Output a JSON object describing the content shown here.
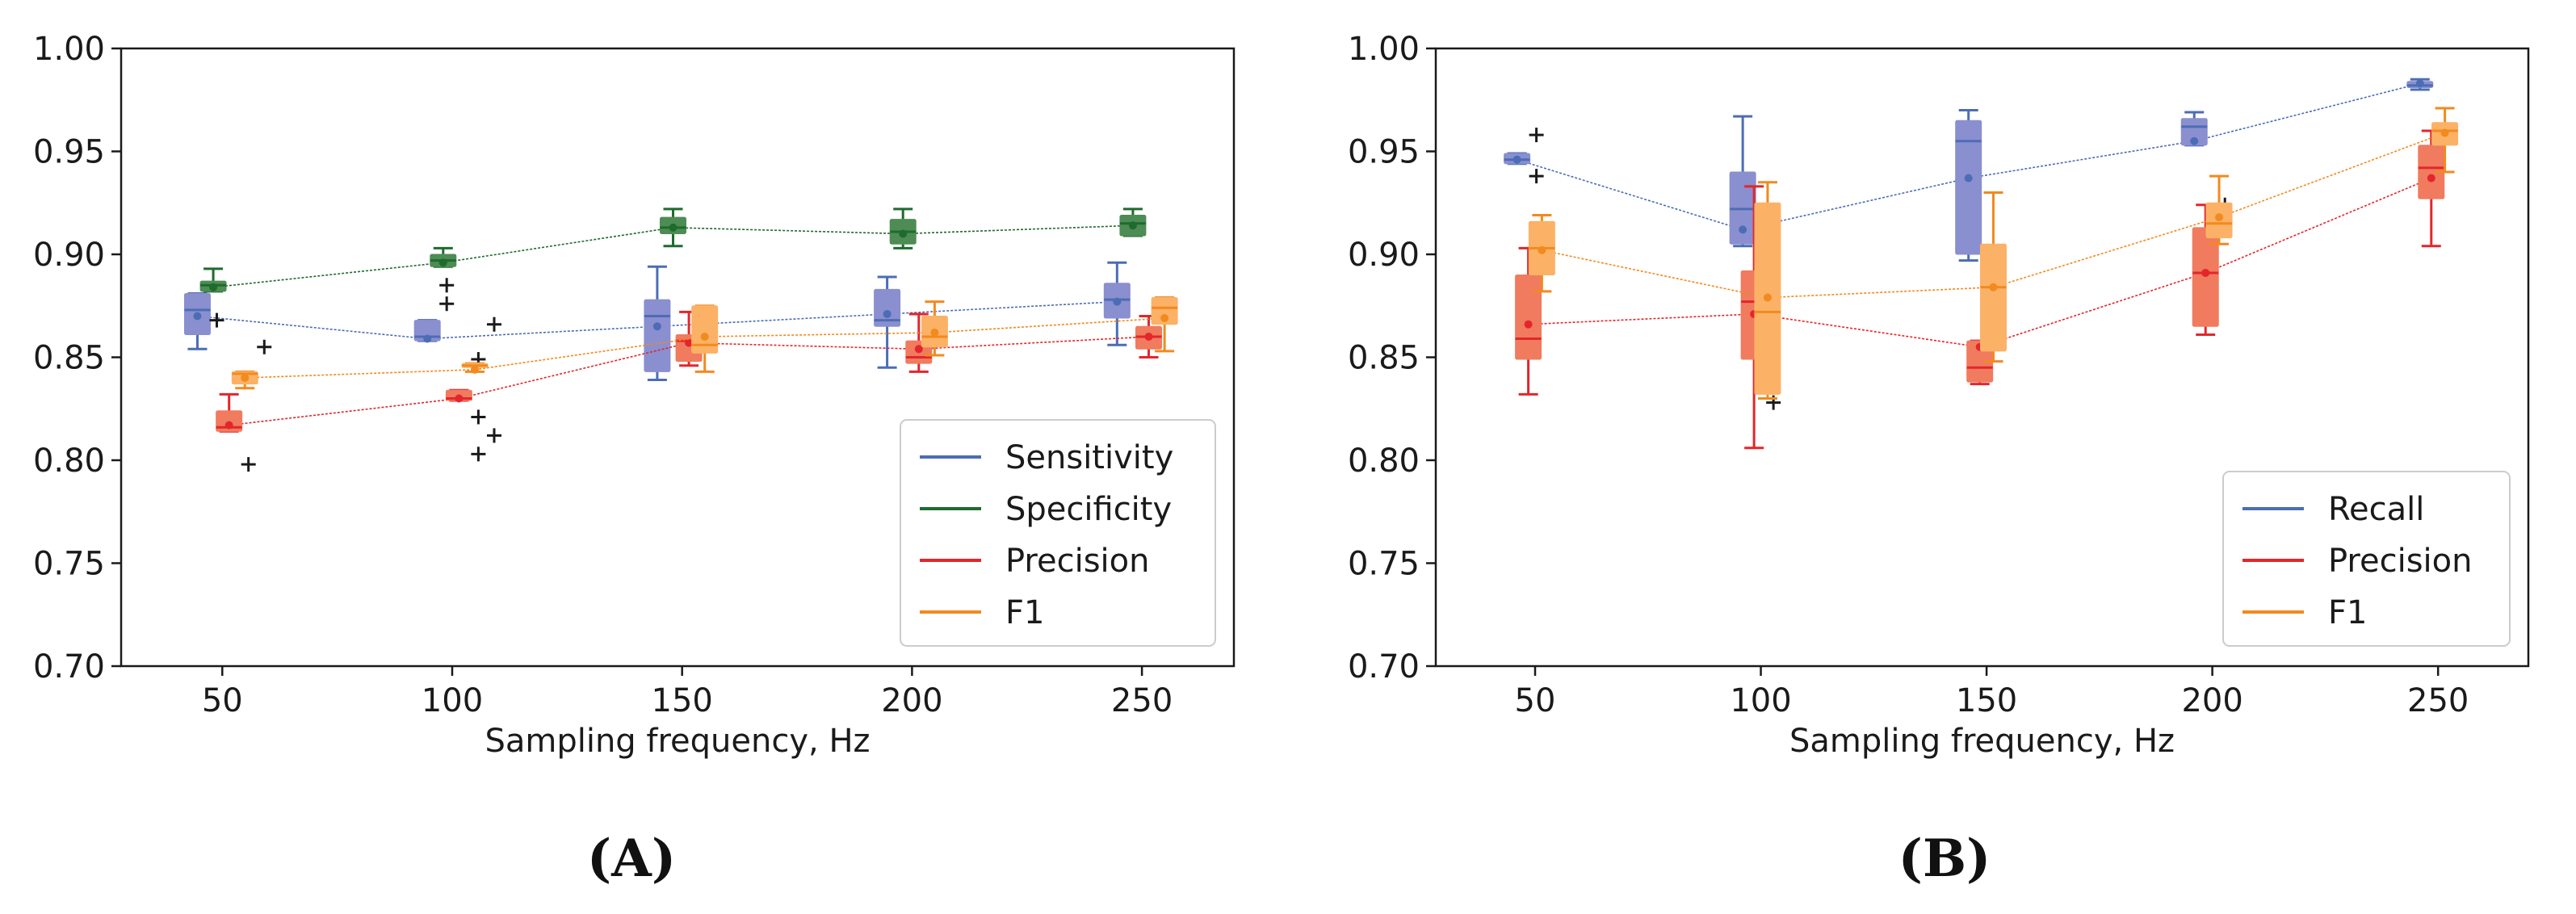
{
  "figure": {
    "panel_labels": [
      "(A)",
      "(B)"
    ]
  },
  "chart_data": [
    {
      "type": "box",
      "panel": "(A)",
      "title": "",
      "xlabel": "Sampling frequency, Hz",
      "ylabel": "",
      "xlim": [
        28,
        270
      ],
      "ylim": [
        0.7,
        1.0
      ],
      "x_ticks": [
        50,
        100,
        150,
        200,
        250
      ],
      "x_tick_labels": [
        "50",
        "100",
        "150",
        "200",
        "250"
      ],
      "y_ticks": [
        0.7,
        0.75,
        0.8,
        0.85,
        0.9,
        0.95,
        1.0
      ],
      "y_tick_labels": [
        "0.70",
        "0.75",
        "0.80",
        "0.85",
        "0.90",
        "0.95",
        "1.00"
      ],
      "grid": false,
      "legend_position": "bottom-right",
      "series": [
        {
          "name": "Sensitivity",
          "color": "#4c6db5",
          "box_color": "#8a8fcf",
          "offset": -11,
          "boxes": [
            {
              "x": 50,
              "whislo": 0.854,
              "q1": 0.861,
              "med": 0.873,
              "q3": 0.881,
              "whishi": 0.881,
              "mean": 0.87,
              "fliers": [
                0.868
              ]
            },
            {
              "x": 100,
              "whislo": 0.858,
              "q1": 0.858,
              "med": 0.86,
              "q3": 0.868,
              "whishi": 0.868,
              "mean": 0.859,
              "fliers": [
                0.885,
                0.876
              ]
            },
            {
              "x": 150,
              "whislo": 0.839,
              "q1": 0.843,
              "med": 0.87,
              "q3": 0.878,
              "whishi": 0.894,
              "mean": 0.865,
              "fliers": []
            },
            {
              "x": 200,
              "whislo": 0.845,
              "q1": 0.865,
              "med": 0.868,
              "q3": 0.883,
              "whishi": 0.889,
              "mean": 0.871,
              "fliers": []
            },
            {
              "x": 250,
              "whislo": 0.856,
              "q1": 0.869,
              "med": 0.878,
              "q3": 0.886,
              "whishi": 0.896,
              "mean": 0.877,
              "fliers": []
            }
          ]
        },
        {
          "name": "Specificity",
          "color": "#1e6b2e",
          "box_color": "#4e8c55",
          "offset": -4,
          "boxes": [
            {
              "x": 50,
              "whislo": 0.882,
              "q1": 0.882,
              "med": 0.885,
              "q3": 0.887,
              "whishi": 0.893,
              "mean": 0.884,
              "fliers": []
            },
            {
              "x": 100,
              "whislo": 0.894,
              "q1": 0.894,
              "med": 0.897,
              "q3": 0.9,
              "whishi": 0.903,
              "mean": 0.896,
              "fliers": []
            },
            {
              "x": 150,
              "whislo": 0.904,
              "q1": 0.91,
              "med": 0.913,
              "q3": 0.918,
              "whishi": 0.922,
              "mean": 0.913,
              "fliers": []
            },
            {
              "x": 200,
              "whislo": 0.903,
              "q1": 0.905,
              "med": 0.911,
              "q3": 0.917,
              "whishi": 0.922,
              "mean": 0.91,
              "fliers": []
            },
            {
              "x": 250,
              "whislo": 0.909,
              "q1": 0.909,
              "med": 0.915,
              "q3": 0.919,
              "whishi": 0.922,
              "mean": 0.914,
              "fliers": []
            }
          ]
        },
        {
          "name": "Precision",
          "color": "#e3262b",
          "box_color": "#f07b5e",
          "offset": 3,
          "boxes": [
            {
              "x": 50,
              "whislo": 0.814,
              "q1": 0.814,
              "med": 0.816,
              "q3": 0.824,
              "whishi": 0.832,
              "mean": 0.817,
              "fliers": [
                0.798
              ]
            },
            {
              "x": 100,
              "whislo": 0.829,
              "q1": 0.829,
              "med": 0.83,
              "q3": 0.834,
              "whishi": 0.834,
              "mean": 0.83,
              "fliers": [
                0.821,
                0.849,
                0.803
              ]
            },
            {
              "x": 150,
              "whislo": 0.846,
              "q1": 0.848,
              "med": 0.858,
              "q3": 0.861,
              "whishi": 0.872,
              "mean": 0.857,
              "fliers": []
            },
            {
              "x": 200,
              "whislo": 0.843,
              "q1": 0.847,
              "med": 0.85,
              "q3": 0.858,
              "whishi": 0.871,
              "mean": 0.854,
              "fliers": []
            },
            {
              "x": 250,
              "whislo": 0.85,
              "q1": 0.854,
              "med": 0.86,
              "q3": 0.865,
              "whishi": 0.87,
              "mean": 0.86,
              "fliers": []
            }
          ]
        },
        {
          "name": "F1",
          "color": "#f28a1e",
          "box_color": "#fbb267",
          "offset": 10,
          "boxes": [
            {
              "x": 50,
              "whislo": 0.835,
              "q1": 0.837,
              "med": 0.842,
              "q3": 0.843,
              "whishi": 0.843,
              "mean": 0.84,
              "fliers": [
                0.855
              ]
            },
            {
              "x": 100,
              "whislo": 0.843,
              "q1": 0.845,
              "med": 0.846,
              "q3": 0.847,
              "whishi": 0.847,
              "mean": 0.844,
              "fliers": [
                0.812,
                0.866
              ]
            },
            {
              "x": 150,
              "whislo": 0.843,
              "q1": 0.852,
              "med": 0.856,
              "q3": 0.875,
              "whishi": 0.875,
              "mean": 0.86,
              "fliers": []
            },
            {
              "x": 200,
              "whislo": 0.851,
              "q1": 0.855,
              "med": 0.86,
              "q3": 0.87,
              "whishi": 0.877,
              "mean": 0.862,
              "fliers": []
            },
            {
              "x": 250,
              "whislo": 0.853,
              "q1": 0.866,
              "med": 0.874,
              "q3": 0.879,
              "whishi": 0.879,
              "mean": 0.869,
              "fliers": []
            }
          ]
        }
      ]
    },
    {
      "type": "box",
      "panel": "(B)",
      "title": "",
      "xlabel": "Sampling frequency, Hz",
      "ylabel": "",
      "xlim": [
        28,
        270
      ],
      "ylim": [
        0.7,
        1.0
      ],
      "x_ticks": [
        50,
        100,
        150,
        200,
        250
      ],
      "x_tick_labels": [
        "50",
        "100",
        "150",
        "200",
        "250"
      ],
      "y_ticks": [
        0.7,
        0.75,
        0.8,
        0.85,
        0.9,
        0.95,
        1.0
      ],
      "y_tick_labels": [
        "0.70",
        "0.75",
        "0.80",
        "0.85",
        "0.90",
        "0.95",
        "1.00"
      ],
      "grid": false,
      "legend_position": "bottom-right",
      "series": [
        {
          "name": "Recall",
          "color": "#4c6db5",
          "box_color": "#8a8fcf",
          "offset": -8,
          "boxes": [
            {
              "x": 50,
              "whislo": 0.944,
              "q1": 0.944,
              "med": 0.946,
              "q3": 0.949,
              "whishi": 0.949,
              "mean": 0.946,
              "fliers": [
                0.958,
                0.938
              ]
            },
            {
              "x": 100,
              "whislo": 0.904,
              "q1": 0.905,
              "med": 0.922,
              "q3": 0.94,
              "whishi": 0.967,
              "mean": 0.912,
              "fliers": []
            },
            {
              "x": 150,
              "whislo": 0.897,
              "q1": 0.9,
              "med": 0.955,
              "q3": 0.965,
              "whishi": 0.97,
              "mean": 0.937,
              "fliers": []
            },
            {
              "x": 200,
              "whislo": 0.953,
              "q1": 0.953,
              "med": 0.962,
              "q3": 0.966,
              "whishi": 0.969,
              "mean": 0.955,
              "fliers": []
            },
            {
              "x": 250,
              "whislo": 0.98,
              "q1": 0.981,
              "med": 0.982,
              "q3": 0.984,
              "whishi": 0.985,
              "mean": 0.983,
              "fliers": []
            }
          ]
        },
        {
          "name": "Precision",
          "color": "#e3262b",
          "box_color": "#f07b5e",
          "offset": -3,
          "boxes": [
            {
              "x": 50,
              "whislo": 0.832,
              "q1": 0.849,
              "med": 0.859,
              "q3": 0.89,
              "whishi": 0.903,
              "mean": 0.866,
              "fliers": []
            },
            {
              "x": 100,
              "whislo": 0.806,
              "q1": 0.849,
              "med": 0.877,
              "q3": 0.892,
              "whishi": 0.933,
              "mean": 0.871,
              "fliers": [
                0.828
              ]
            },
            {
              "x": 150,
              "whislo": 0.837,
              "q1": 0.838,
              "med": 0.845,
              "q3": 0.858,
              "whishi": 0.858,
              "mean": 0.855,
              "fliers": [
                0.895
              ]
            },
            {
              "x": 200,
              "whislo": 0.861,
              "q1": 0.865,
              "med": 0.891,
              "q3": 0.913,
              "whishi": 0.924,
              "mean": 0.891,
              "fliers": [
                0.924
              ]
            },
            {
              "x": 250,
              "whislo": 0.904,
              "q1": 0.927,
              "med": 0.942,
              "q3": 0.953,
              "whishi": 0.96,
              "mean": 0.937,
              "fliers": []
            }
          ]
        },
        {
          "name": "F1",
          "color": "#f28a1e",
          "box_color": "#fbb267",
          "offset": 3,
          "boxes": [
            {
              "x": 50,
              "whislo": 0.882,
              "q1": 0.89,
              "med": 0.903,
              "q3": 0.916,
              "whishi": 0.919,
              "mean": 0.902,
              "fliers": []
            },
            {
              "x": 100,
              "whislo": 0.83,
              "q1": 0.832,
              "med": 0.872,
              "q3": 0.925,
              "whishi": 0.935,
              "mean": 0.879,
              "fliers": []
            },
            {
              "x": 150,
              "whislo": 0.848,
              "q1": 0.853,
              "med": 0.884,
              "q3": 0.905,
              "whishi": 0.93,
              "mean": 0.884,
              "fliers": []
            },
            {
              "x": 200,
              "whislo": 0.905,
              "q1": 0.908,
              "med": 0.915,
              "q3": 0.925,
              "whishi": 0.938,
              "mean": 0.918,
              "fliers": []
            },
            {
              "x": 250,
              "whislo": 0.94,
              "q1": 0.953,
              "med": 0.96,
              "q3": 0.964,
              "whishi": 0.971,
              "mean": 0.959,
              "fliers": []
            }
          ]
        }
      ]
    }
  ]
}
